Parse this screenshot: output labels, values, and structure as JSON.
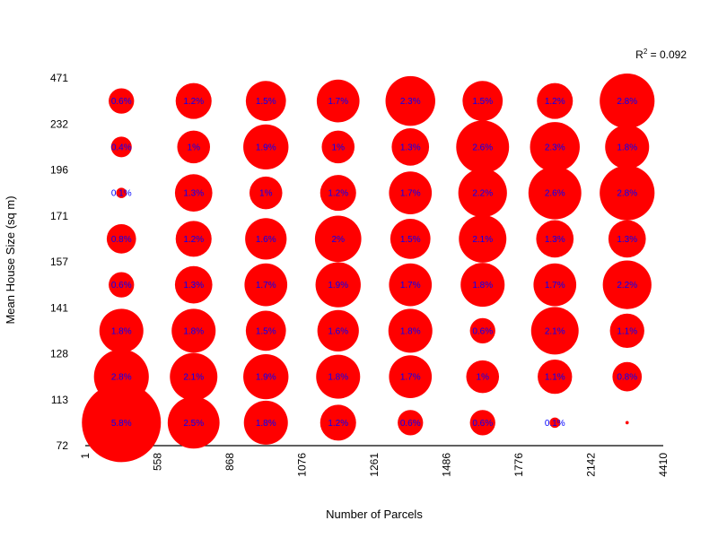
{
  "chart_data": {
    "type": "bubble-grid",
    "xlabel": "Number of Parcels",
    "ylabel": "Mean House Size (sq m)",
    "x_breaks": [
      "1",
      "558",
      "868",
      "1076",
      "1261",
      "1486",
      "1776",
      "2142",
      "4410"
    ],
    "y_breaks": [
      "72",
      "113",
      "128",
      "141",
      "157",
      "171",
      "196",
      "232",
      "471"
    ],
    "annotation": {
      "prefix": "R",
      "superscript": "2",
      "suffix": " = 0.092"
    },
    "colors": {
      "bubble": "#ff0000",
      "label": "#0000ff",
      "axis": "#000000"
    },
    "grid": false,
    "cells": [
      [
        "5.8%",
        "2.5%",
        "1.8%",
        "1.2%",
        "0.6%",
        "0.6%",
        "0.1%",
        "0%"
      ],
      [
        "2.8%",
        "2.1%",
        "1.9%",
        "1.8%",
        "1.7%",
        "1%",
        "1.1%",
        "0.8%"
      ],
      [
        "1.8%",
        "1.8%",
        "1.5%",
        "1.6%",
        "1.8%",
        "0.6%",
        "2.1%",
        "1.1%"
      ],
      [
        "0.6%",
        "1.3%",
        "1.7%",
        "1.9%",
        "1.7%",
        "1.8%",
        "1.7%",
        "2.2%"
      ],
      [
        "0.8%",
        "1.2%",
        "1.6%",
        "2%",
        "1.5%",
        "2.1%",
        "1.3%",
        "1.3%"
      ],
      [
        "0.1%",
        "1.3%",
        "1%",
        "1.2%",
        "1.7%",
        "2.2%",
        "2.6%",
        "2.8%"
      ],
      [
        "0.4%",
        "1%",
        "1.9%",
        "1%",
        "1.3%",
        "2.6%",
        "2.3%",
        "1.8%"
      ],
      [
        "0.6%",
        "1.2%",
        "1.5%",
        "1.7%",
        "2.3%",
        "1.5%",
        "1.2%",
        "2.8%"
      ]
    ],
    "values": [
      [
        5.8,
        2.5,
        1.8,
        1.2,
        0.6,
        0.6,
        0.1,
        0.01
      ],
      [
        2.8,
        2.1,
        1.9,
        1.8,
        1.7,
        1.0,
        1.1,
        0.8
      ],
      [
        1.8,
        1.8,
        1.5,
        1.6,
        1.8,
        0.6,
        2.1,
        1.1
      ],
      [
        0.6,
        1.3,
        1.7,
        1.9,
        1.7,
        1.8,
        1.7,
        2.2
      ],
      [
        0.8,
        1.2,
        1.6,
        2.0,
        1.5,
        2.1,
        1.3,
        1.3
      ],
      [
        0.1,
        1.3,
        1.0,
        1.2,
        1.7,
        2.2,
        2.6,
        2.8
      ],
      [
        0.4,
        1.0,
        1.9,
        1.0,
        1.3,
        2.6,
        2.3,
        1.8
      ],
      [
        0.6,
        1.2,
        1.5,
        1.7,
        2.3,
        1.5,
        1.2,
        2.8
      ]
    ]
  }
}
